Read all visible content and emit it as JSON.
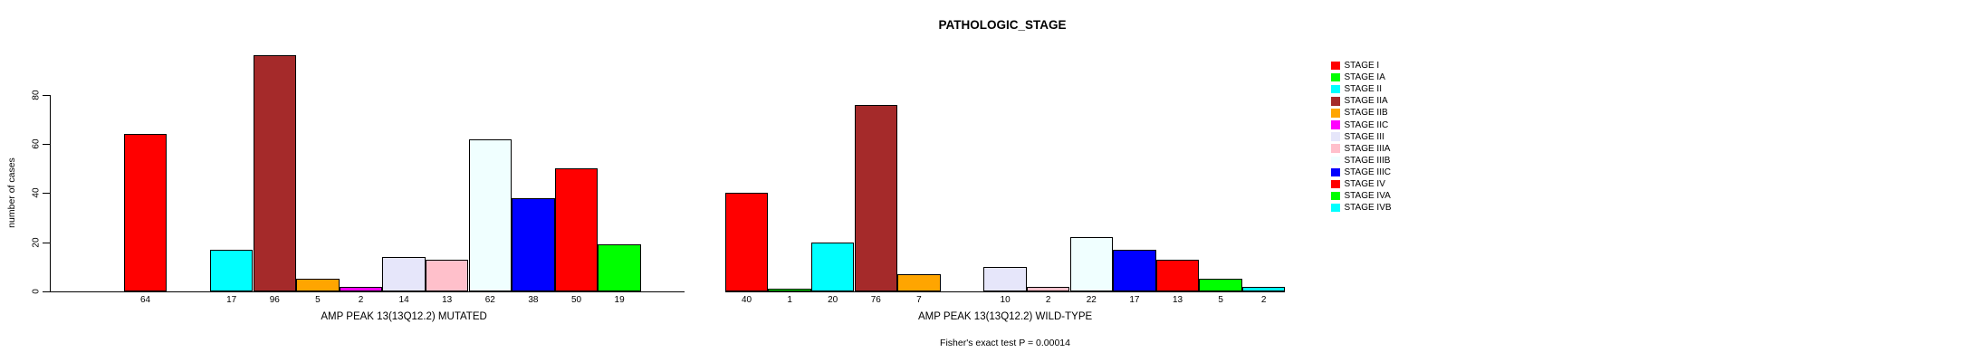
{
  "title": "PATHOLOGIC_STAGE",
  "y_axis": {
    "label": "number of cases",
    "ticks": [
      0,
      20,
      40,
      60,
      80
    ]
  },
  "footer": "Fisher's exact test P = 0.00014",
  "legend": {
    "position": "right",
    "entries": [
      {
        "label": "STAGE I",
        "color": "#FF0000"
      },
      {
        "label": "STAGE IA",
        "color": "#00FF00"
      },
      {
        "label": "STAGE II",
        "color": "#00FFFF"
      },
      {
        "label": "STAGE IIA",
        "color": "#A52A2A"
      },
      {
        "label": "STAGE IIB",
        "color": "#FFA500"
      },
      {
        "label": "STAGE IIC",
        "color": "#FF00FF"
      },
      {
        "label": "STAGE III",
        "color": "#E6E6FA"
      },
      {
        "label": "STAGE IIIA",
        "color": "#FFC0CB"
      },
      {
        "label": "STAGE IIIB",
        "color": "#F0FFFF"
      },
      {
        "label": "STAGE IIIC",
        "color": "#0000FF"
      },
      {
        "label": "STAGE IV",
        "color": "#FF0000"
      },
      {
        "label": "STAGE IVA",
        "color": "#00FF00"
      },
      {
        "label": "STAGE IVB",
        "color": "#00FFFF"
      }
    ]
  },
  "chart_data": [
    {
      "type": "bar",
      "title": "PATHOLOGIC_STAGE",
      "xlabel": "AMP PEAK 13(13Q12.2) MUTATED",
      "ylabel": "number of cases",
      "categories": [
        "STAGE I",
        "STAGE IA",
        "STAGE II",
        "STAGE IIA",
        "STAGE IIB",
        "STAGE IIC",
        "STAGE III",
        "STAGE IIIA",
        "STAGE IIIB",
        "STAGE IIIC",
        "STAGE IV",
        "STAGE IVA",
        "STAGE IVB"
      ],
      "values": [
        64,
        0,
        17,
        96,
        5,
        2,
        14,
        13,
        62,
        38,
        50,
        19,
        0
      ],
      "colors": [
        "#FF0000",
        "#00FF00",
        "#00FFFF",
        "#A52A2A",
        "#FFA500",
        "#FF00FF",
        "#E6E6FA",
        "#FFC0CB",
        "#F0FFFF",
        "#0000FF",
        "#FF0000",
        "#00FF00",
        "#00FFFF"
      ],
      "yticks": [
        0,
        20,
        40,
        60,
        80
      ],
      "ylim": [
        0,
        96
      ],
      "grid": false,
      "legend_position": "right",
      "bar_label_rule": "value shown under bar only when value > 0"
    },
    {
      "type": "bar",
      "title": "PATHOLOGIC_STAGE",
      "xlabel": "AMP PEAK 13(13Q12.2) WILD-TYPE",
      "ylabel": "number of cases",
      "categories": [
        "STAGE I",
        "STAGE IA",
        "STAGE II",
        "STAGE IIA",
        "STAGE IIB",
        "STAGE IIC",
        "STAGE III",
        "STAGE IIIA",
        "STAGE IIIB",
        "STAGE IIIC",
        "STAGE IV",
        "STAGE IVA",
        "STAGE IVB"
      ],
      "values": [
        40,
        1,
        20,
        76,
        7,
        0,
        10,
        2,
        22,
        17,
        13,
        5,
        2
      ],
      "colors": [
        "#FF0000",
        "#00FF00",
        "#00FFFF",
        "#A52A2A",
        "#FFA500",
        "#FF00FF",
        "#E6E6FA",
        "#FFC0CB",
        "#F0FFFF",
        "#0000FF",
        "#FF0000",
        "#00FF00",
        "#00FFFF"
      ],
      "yticks": [
        0,
        20,
        40,
        60,
        80
      ],
      "ylim": [
        0,
        96
      ],
      "grid": false,
      "legend_position": "right",
      "bar_label_rule": "value shown under bar only when value > 0"
    }
  ]
}
